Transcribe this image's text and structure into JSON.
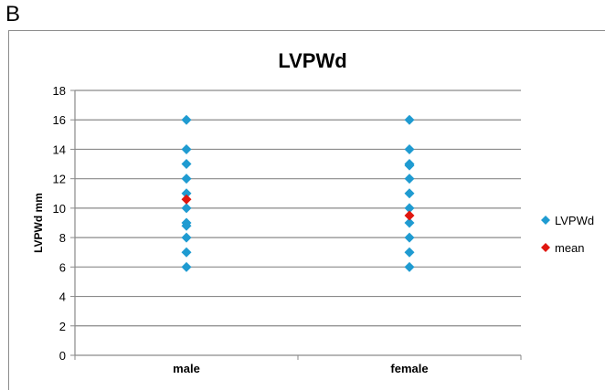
{
  "panel_label": "B",
  "colors": {
    "series_point": "#1f9bd1",
    "mean_point": "#e0170f",
    "gridline": "#8a8a8a",
    "axis": "#8a8a8a"
  },
  "chart_data": {
    "type": "scatter",
    "title": "LVPWd",
    "xlabel": "",
    "ylabel": "LVPWd mm",
    "categories": [
      "male",
      "female"
    ],
    "ylim": [
      0,
      18
    ],
    "yticks": [
      0,
      2,
      4,
      6,
      8,
      10,
      12,
      14,
      16,
      18
    ],
    "grid": true,
    "legend_position": "right",
    "series": [
      {
        "name": "LVPWd",
        "color": "#1f9bd1",
        "marker": "diamond",
        "points": [
          {
            "category": "male",
            "y": 16
          },
          {
            "category": "male",
            "y": 14
          },
          {
            "category": "male",
            "y": 13
          },
          {
            "category": "male",
            "y": 12
          },
          {
            "category": "male",
            "y": 11
          },
          {
            "category": "male",
            "y": 10
          },
          {
            "category": "male",
            "y": 9
          },
          {
            "category": "male",
            "y": 8.8
          },
          {
            "category": "male",
            "y": 8
          },
          {
            "category": "male",
            "y": 7
          },
          {
            "category": "male",
            "y": 6
          },
          {
            "category": "female",
            "y": 16
          },
          {
            "category": "female",
            "y": 14
          },
          {
            "category": "female",
            "y": 13
          },
          {
            "category": "female",
            "y": 12.9
          },
          {
            "category": "female",
            "y": 12
          },
          {
            "category": "female",
            "y": 11
          },
          {
            "category": "female",
            "y": 10
          },
          {
            "category": "female",
            "y": 9
          },
          {
            "category": "female",
            "y": 8
          },
          {
            "category": "female",
            "y": 7
          },
          {
            "category": "female",
            "y": 6
          }
        ]
      },
      {
        "name": "mean",
        "color": "#e0170f",
        "marker": "diamond",
        "points": [
          {
            "category": "male",
            "y": 10.6
          },
          {
            "category": "female",
            "y": 9.5
          }
        ]
      }
    ]
  }
}
